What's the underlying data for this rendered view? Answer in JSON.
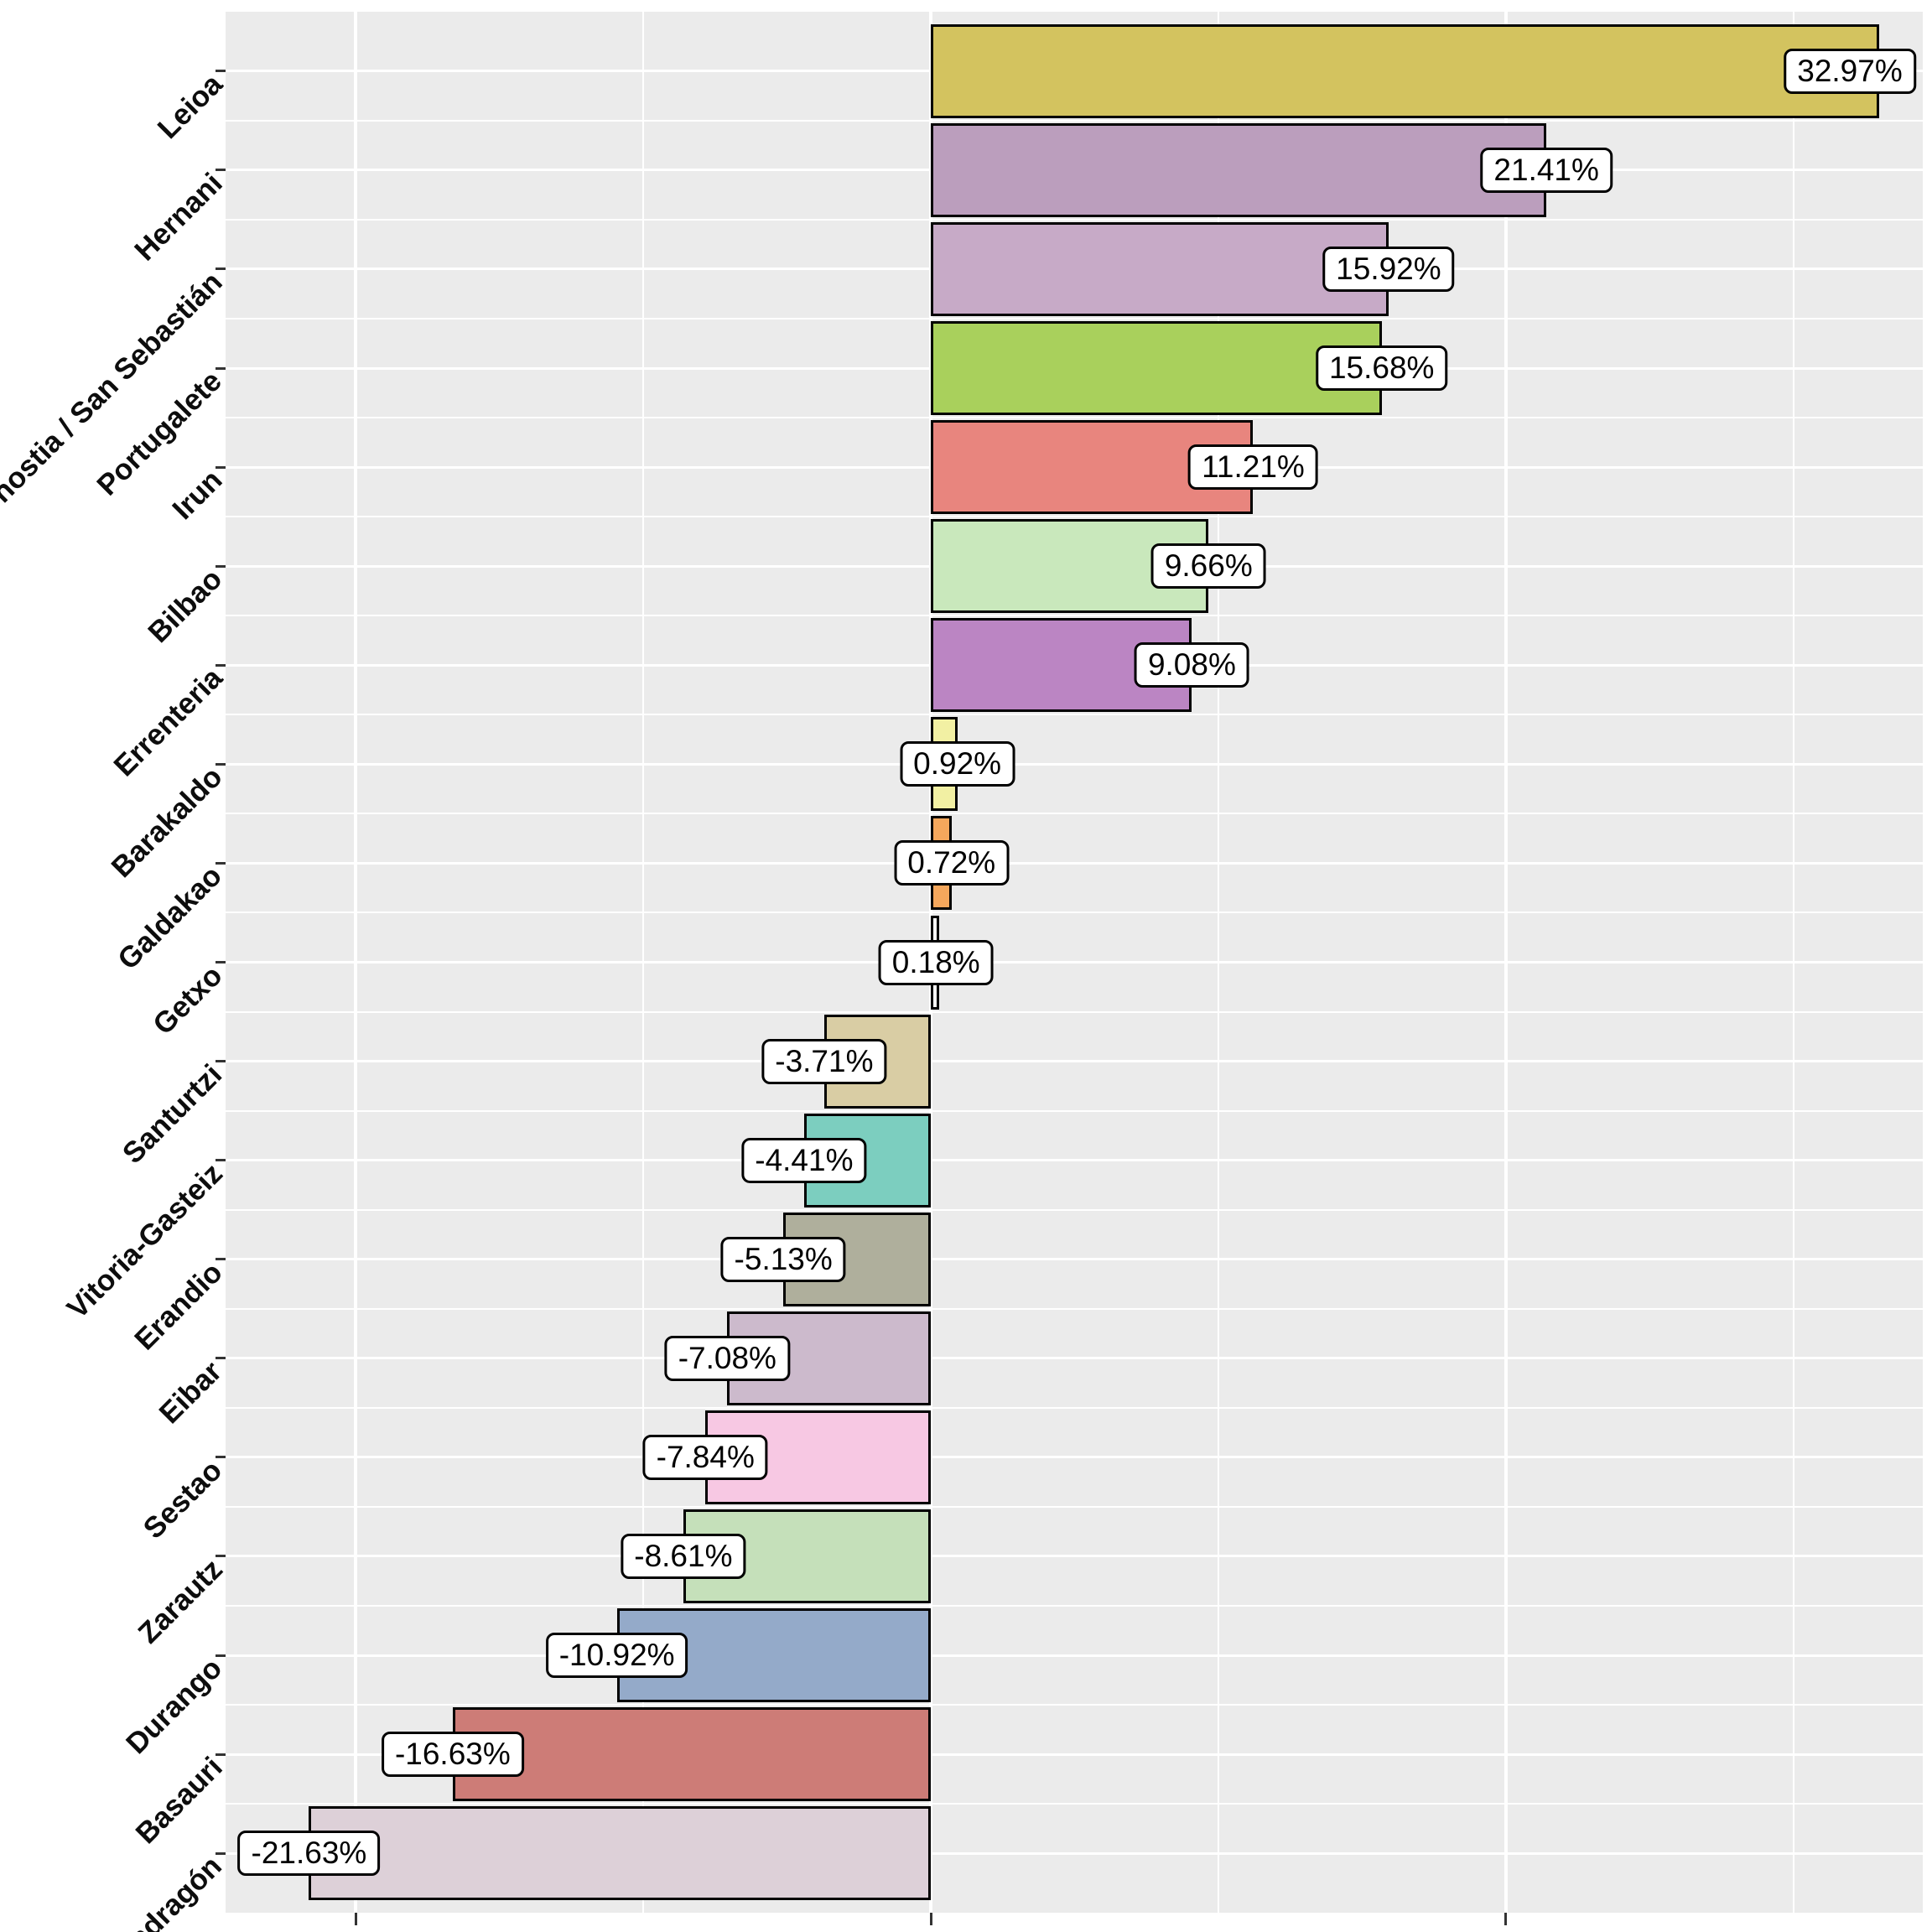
{
  "chart_data": {
    "type": "bar",
    "orientation": "horizontal",
    "title": "",
    "xlabel": "",
    "ylabel": "",
    "legend_position": "none",
    "categories": [
      "Leioa",
      "Hernani",
      "Donostia / San Sebastián",
      "Portugalete",
      "Irun",
      "Bilbao",
      "Errenteria",
      "Barakaldo",
      "Galdakao",
      "Getxo",
      "Santurtzi",
      "Vitoria-Gasteiz",
      "Erandio",
      "Eibar",
      "Sestao",
      "Zarautz",
      "Durango",
      "Basauri",
      "Mondragón"
    ],
    "values": [
      32.97,
      21.41,
      15.92,
      15.68,
      11.21,
      9.66,
      9.08,
      0.92,
      0.72,
      0.18,
      -3.71,
      -4.41,
      -5.13,
      -7.08,
      -7.84,
      -8.61,
      -10.92,
      -16.63,
      -21.63
    ],
    "value_labels": [
      "32.97%",
      "21.41%",
      "15.92%",
      "15.68%",
      "11.21%",
      "9.66%",
      "9.08%",
      "0.92%",
      "0.72%",
      "0.18%",
      "-3.71%",
      "-4.41%",
      "-5.13%",
      "-7.08%",
      "-7.84%",
      "-8.61%",
      "-10.92%",
      "-16.63%",
      "-21.63%"
    ],
    "bar_colors": [
      "#D3C35F",
      "#BB9EBD",
      "#C7AAC7",
      "#A9D05C",
      "#E8857E",
      "#C9E8BC",
      "#BB85C3",
      "#F2F0A3",
      "#F5A75C",
      "#FCFCFA",
      "#D9CDA4",
      "#7CCEBF",
      "#AFAF9C",
      "#CCBACC",
      "#F7C8E3",
      "#C5E0BA",
      "#94AAC9",
      "#CD7C77",
      "#DDD0D8"
    ],
    "bar_outline_color": "#000000",
    "x_axis": {
      "domain": [
        -24.53,
        34.5
      ],
      "major_gridlines": [
        -20,
        0,
        20
      ],
      "minor_gridlines": [
        -10,
        10,
        30
      ],
      "tick_values": [
        -20,
        0,
        20
      ],
      "tick_labels_visible": false
    },
    "grid": {
      "panel_background": "#EBEBEB",
      "gridline_color": "#FFFFFF",
      "horizontal_major": "at each category center",
      "horizontal_minor": "between categories"
    },
    "label_box": {
      "fill": "#FFFFFF",
      "border_color": "#000000",
      "text_color": "#000000"
    }
  }
}
